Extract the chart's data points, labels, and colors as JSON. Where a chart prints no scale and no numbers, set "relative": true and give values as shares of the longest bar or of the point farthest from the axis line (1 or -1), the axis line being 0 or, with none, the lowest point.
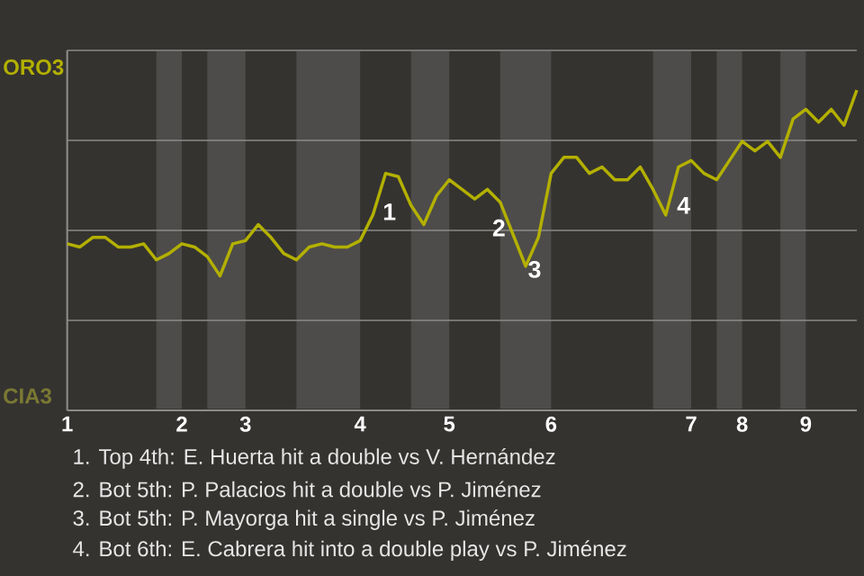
{
  "chart_data": {
    "type": "line",
    "relative": true,
    "categories": [
      "1",
      null,
      null,
      null,
      null,
      null,
      null,
      null,
      null,
      "2",
      null,
      null,
      null,
      null,
      "3",
      null,
      null,
      null,
      null,
      null,
      null,
      null,
      null,
      "4",
      null,
      null,
      null,
      null,
      null,
      null,
      "5",
      null,
      null,
      null,
      null,
      null,
      null,
      null,
      "6",
      null,
      null,
      null,
      null,
      null,
      null,
      null,
      null,
      null,
      null,
      "7",
      null,
      null,
      null,
      "8",
      null,
      null,
      null,
      null,
      "9",
      null,
      null,
      null,
      null
    ],
    "series": [
      {
        "color": "#b3b000",
        "values": [
          0.52,
          0.51,
          0.54,
          0.54,
          0.51,
          0.51,
          0.52,
          0.47,
          0.49,
          0.52,
          0.51,
          0.48,
          0.42,
          0.52,
          0.53,
          0.58,
          0.54,
          0.49,
          0.47,
          0.51,
          0.52,
          0.51,
          0.51,
          0.53,
          0.61,
          0.74,
          0.73,
          0.64,
          0.58,
          0.67,
          0.72,
          0.69,
          0.66,
          0.69,
          0.65,
          0.55,
          0.45,
          0.54,
          0.74,
          0.79,
          0.79,
          0.74,
          0.76,
          0.72,
          0.72,
          0.76,
          0.69,
          0.61,
          0.76,
          0.78,
          0.74,
          0.72,
          0.78,
          0.84,
          0.81,
          0.84,
          0.79,
          0.91,
          0.94,
          0.9,
          0.94,
          0.89,
          1
        ]
      }
    ],
    "grid": "y",
    "annotations": [
      "ORO3",
      "CIA3",
      "1",
      "2",
      "3",
      "4",
      "1. Top 4th: E. Huerta hit a double vs V. Hernández",
      "2. Bot 5th: P. Palacios hit a double vs P. Jiménez",
      "3. Bot 5th: P. Mayorga hit a single vs P. Jiménez",
      "4. Bot 6th: E. Cabrera hit into a double play vs P. Jiménez"
    ]
  }
}
